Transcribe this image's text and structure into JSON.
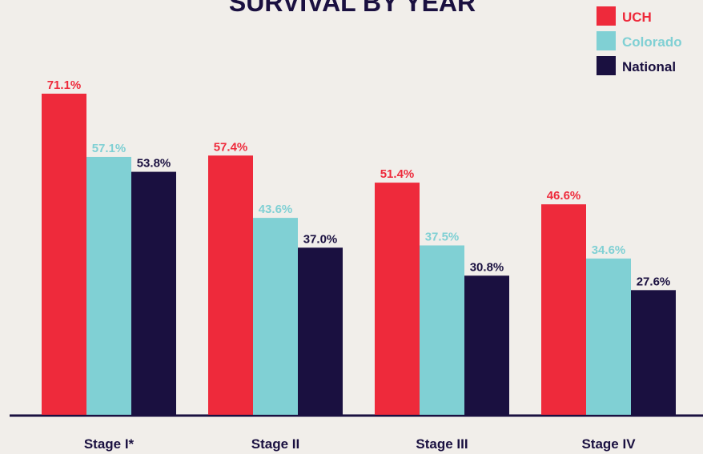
{
  "chart_data": {
    "type": "bar",
    "title": "SURVIVAL BY YEAR",
    "categories": [
      "Stage I*",
      "Stage II",
      "Stage III",
      "Stage IV"
    ],
    "series": [
      {
        "name": "UCH",
        "color": "#ee2a3b",
        "values": [
          71.1,
          57.4,
          51.4,
          46.6
        ],
        "value_labels": [
          "71.1%",
          "57.4%",
          "51.4%",
          "46.6%"
        ]
      },
      {
        "name": "Colorado",
        "color": "#80d0d4",
        "values": [
          57.1,
          43.6,
          37.5,
          34.6
        ],
        "value_labels": [
          "57.1%",
          "43.6%",
          "37.5%",
          "34.6%"
        ]
      },
      {
        "name": "National",
        "color": "#1a1040",
        "values": [
          53.8,
          37.0,
          30.8,
          27.6
        ],
        "value_labels": [
          "53.8%",
          "37.0%",
          "30.8%",
          "27.6%"
        ]
      }
    ],
    "legend": "top-right"
  }
}
